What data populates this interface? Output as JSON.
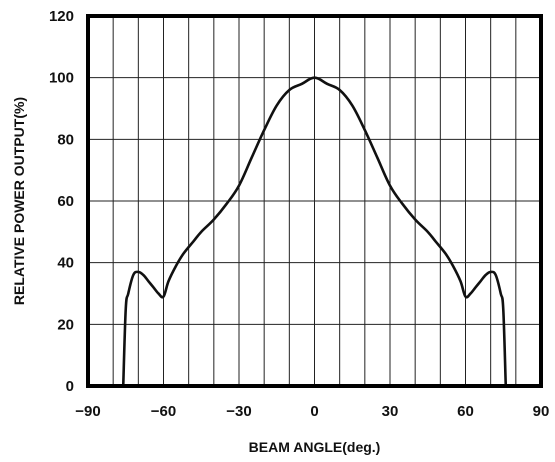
{
  "chart_data": {
    "type": "line",
    "title": "",
    "xlabel": "BEAM ANGLE(deg.)",
    "ylabel": "RELATIVE POWER OUTPUT(%)",
    "xlim": [
      -90,
      90
    ],
    "ylim": [
      0,
      120
    ],
    "x_ticks": [
      -90,
      -60,
      -30,
      0,
      30,
      60,
      90
    ],
    "x_tick_labels": [
      "−90",
      "−60",
      "−30",
      "0",
      "30",
      "60",
      "90"
    ],
    "y_ticks": [
      0,
      20,
      40,
      60,
      80,
      100,
      120
    ],
    "y_tick_labels": [
      "0",
      "20",
      "40",
      "60",
      "80",
      "100",
      "120"
    ],
    "grid": true,
    "grid_x_step": 10,
    "grid_y_step": 20,
    "line_color": "#111111",
    "series": [
      {
        "x": [
          -76,
          -75,
          -74,
          -72,
          -70,
          -68,
          -66,
          -64,
          -62,
          -60,
          -58,
          -55,
          -52,
          -48,
          -45,
          -40,
          -35,
          -30,
          -25,
          -20,
          -15,
          -10,
          -5,
          -2,
          0,
          2,
          5,
          10,
          15,
          20,
          25,
          30,
          35,
          40,
          45,
          48,
          52,
          55,
          58,
          60,
          62,
          64,
          66,
          68,
          70,
          72,
          74,
          75,
          76
        ],
        "y": [
          0,
          25,
          30,
          36,
          37,
          36,
          34,
          32,
          30,
          29,
          34,
          39,
          43,
          47,
          50,
          54,
          59,
          65,
          74,
          83,
          91,
          96,
          98,
          99.5,
          100,
          99.5,
          98,
          96,
          91,
          83,
          74,
          65,
          59,
          54,
          50,
          47,
          43,
          39,
          34,
          29,
          30,
          32,
          34,
          36,
          37,
          36,
          30,
          25,
          0
        ]
      }
    ]
  }
}
